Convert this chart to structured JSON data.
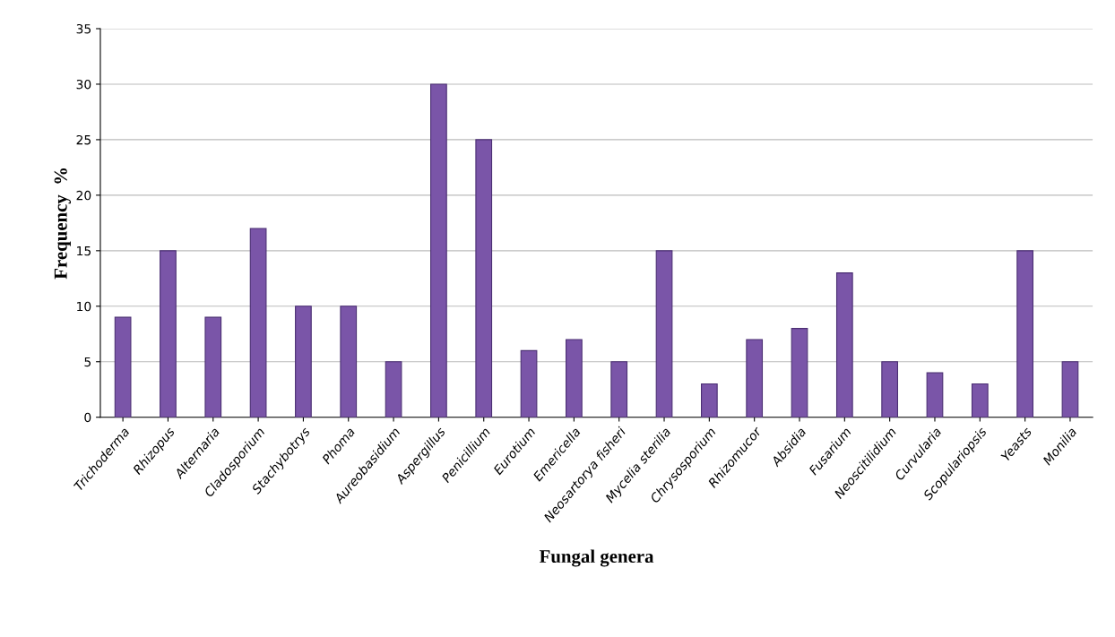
{
  "chart_data": {
    "type": "bar",
    "xlabel": "Fungal genera",
    "ylabel": "Frequency  %",
    "categories": [
      "Trichoderma",
      "Rhizopus",
      "Alternaria",
      "Cladosporium",
      "Stachybotrys",
      "Phoma",
      "Aureobasidium",
      "Aspergillus",
      "Penicillium",
      "Eurotium",
      "Emericella",
      "Neosartorya fisheri",
      "Mycelia sterilia",
      "Chrysosporium",
      "Rhizomucor",
      "Absidia",
      "Fusarium",
      "Neoscitilidium",
      "Curvularia",
      "Scopulariopsis",
      "Yeasts",
      "Monilia"
    ],
    "values": [
      9,
      15,
      9,
      17,
      10,
      10,
      5,
      30,
      25,
      6,
      7,
      5,
      15,
      3,
      7,
      8,
      13,
      5,
      4,
      3,
      15,
      5
    ],
    "color": "#7a55a8",
    "ylim": [
      0,
      35
    ],
    "yticks": [
      0,
      5,
      10,
      15,
      20,
      25,
      30,
      35
    ],
    "grid": "y"
  }
}
